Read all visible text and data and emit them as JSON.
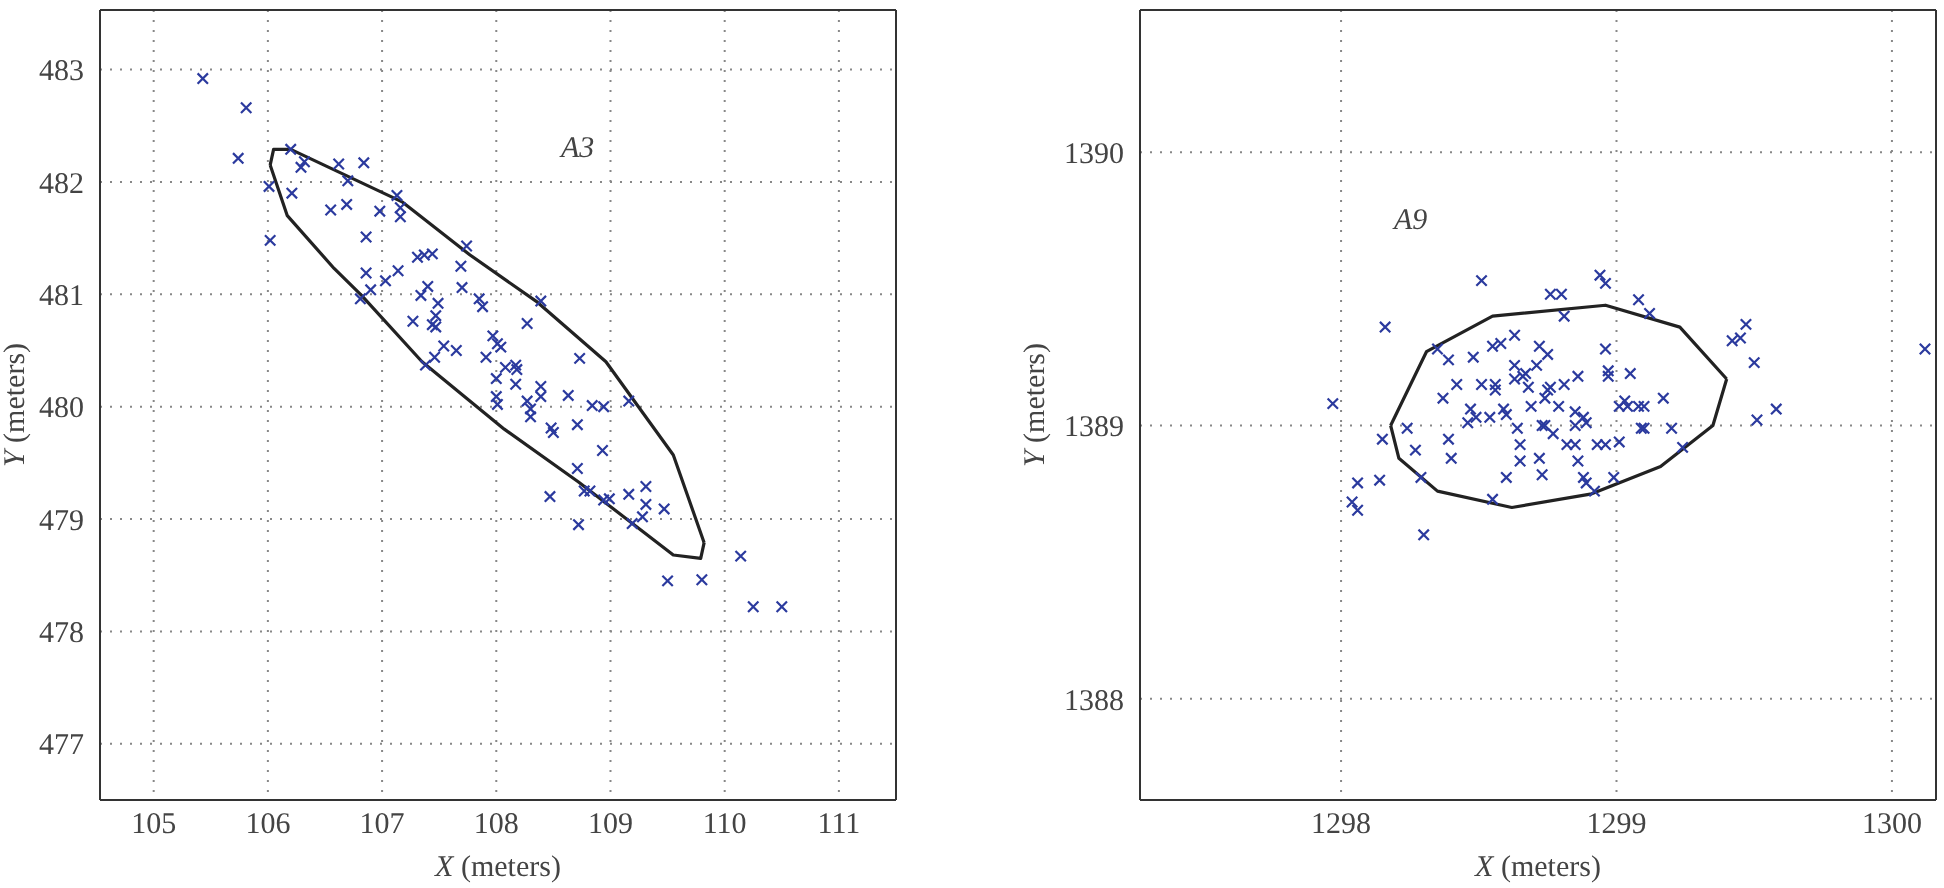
{
  "chart_data": [
    {
      "type": "scatter",
      "xlabel": "X (meters)",
      "ylabel": "Y (meters)",
      "xlim": [
        104.53,
        111.5
      ],
      "ylim": [
        476.5,
        483.53
      ],
      "xticks": [
        105,
        106,
        107,
        108,
        109,
        110,
        111
      ],
      "yticks": [
        477,
        478,
        479,
        480,
        481,
        482,
        483
      ],
      "grid": true,
      "marker": "cross",
      "annotations": [
        "A3"
      ],
      "series": [
        {
          "type": "line",
          "marker": "none",
          "color": "#222222",
          "x": [
            106.02,
            106.05,
            106.2,
            107.18,
            107.77,
            108.36,
            108.96,
            109.55,
            109.82
          ],
          "values": [
            482.15,
            482.29,
            482.29,
            481.82,
            481.35,
            480.93,
            480.4,
            479.57,
            478.79
          ]
        },
        {
          "type": "line",
          "marker": "none",
          "color": "#222222",
          "x": [
            106.02,
            106.17,
            106.58,
            106.82,
            107.35,
            108.07,
            108.72,
            109.55,
            109.79,
            109.82
          ],
          "values": [
            482.15,
            481.7,
            481.23,
            480.99,
            480.4,
            479.8,
            479.33,
            478.68,
            478.65,
            478.79
          ]
        },
        {
          "type": "scatter",
          "color": "#2b3a9e",
          "x": [
            105.43,
            105.81,
            105.74,
            106.01,
            106.02,
            106.2,
            106.21,
            106.29,
            106.32,
            106.62,
            106.7,
            106.84,
            106.55,
            106.69,
            106.98,
            107.13,
            107.16,
            107.16,
            106.86,
            107.14,
            106.86,
            107.03,
            106.9,
            106.81,
            107.31,
            107.37,
            107.44,
            107.74,
            107.69,
            107.7,
            107.4,
            107.34,
            107.49,
            107.27,
            107.47,
            107.44,
            107.47,
            107.38,
            107.46,
            107.54,
            107.65,
            107.85,
            107.88,
            107.91,
            107.97,
            108.01,
            108.04,
            108.08,
            108.0,
            108.17,
            108.18,
            108.17,
            108.0,
            108.01,
            108.27,
            108.39,
            108.39,
            108.39,
            108.27,
            108.3,
            108.3,
            108.63,
            108.84,
            108.94,
            109.16,
            108.73,
            108.48,
            108.5,
            108.71,
            108.93,
            108.71,
            108.77,
            108.82,
            108.47,
            108.94,
            108.99,
            109.16,
            109.31,
            109.31,
            109.28,
            109.19,
            109.47,
            108.72,
            109.5,
            109.8,
            110.14,
            110.25,
            110.5
          ],
          "values": [
            482.92,
            482.66,
            482.21,
            481.96,
            481.48,
            482.29,
            481.9,
            482.13,
            482.18,
            482.16,
            482.01,
            482.17,
            481.75,
            481.8,
            481.74,
            481.88,
            481.77,
            481.69,
            481.51,
            481.21,
            481.19,
            481.12,
            481.04,
            480.96,
            481.33,
            481.35,
            481.36,
            481.43,
            481.25,
            481.06,
            481.07,
            480.99,
            480.92,
            480.76,
            480.81,
            480.73,
            480.71,
            480.37,
            480.44,
            480.54,
            480.5,
            480.96,
            480.89,
            480.44,
            480.63,
            480.56,
            480.53,
            480.35,
            480.25,
            480.37,
            480.33,
            480.2,
            480.09,
            480.02,
            480.74,
            480.94,
            480.18,
            480.09,
            480.05,
            479.98,
            479.91,
            480.1,
            480.01,
            480.0,
            480.05,
            480.43,
            479.81,
            479.77,
            479.84,
            479.61,
            479.45,
            479.25,
            479.25,
            479.2,
            479.17,
            479.18,
            479.22,
            479.29,
            479.13,
            479.02,
            478.96,
            479.09,
            478.95,
            478.45,
            478.46,
            478.67,
            478.22,
            478.22
          ]
        }
      ]
    },
    {
      "type": "scatter",
      "xlabel": "X (meters)",
      "ylabel": "Y (meters)",
      "xlim": [
        1297.27,
        1300.16
      ],
      "ylim": [
        1387.63,
        1390.52
      ],
      "xticks": [
        1298,
        1299,
        1300
      ],
      "yticks": [
        1388,
        1389,
        1390
      ],
      "grid": true,
      "marker": "cross",
      "annotations": [
        "A9"
      ],
      "series": [
        {
          "type": "line",
          "marker": "none",
          "color": "#222222",
          "x": [
            1298.18,
            1298.31,
            1298.55,
            1298.96,
            1299.23,
            1299.4
          ],
          "values": [
            1389.0,
            1389.27,
            1389.4,
            1389.44,
            1389.36,
            1389.17
          ]
        },
        {
          "type": "line",
          "marker": "none",
          "color": "#222222",
          "x": [
            1298.18,
            1298.21,
            1298.35,
            1298.62,
            1298.91,
            1299.16,
            1299.35,
            1299.4
          ],
          "values": [
            1389.0,
            1388.88,
            1388.76,
            1388.7,
            1388.75,
            1388.85,
            1389.0,
            1389.17
          ]
        },
        {
          "type": "scatter",
          "color": "#2b3a9e",
          "x": [
            1297.97,
            1298.16,
            1298.15,
            1298.06,
            1298.04,
            1298.06,
            1298.14,
            1298.24,
            1298.27,
            1298.29,
            1298.3,
            1298.35,
            1298.39,
            1298.37,
            1298.42,
            1298.39,
            1298.4,
            1298.51,
            1298.48,
            1298.47,
            1298.49,
            1298.46,
            1298.54,
            1298.51,
            1298.56,
            1298.56,
            1298.55,
            1298.58,
            1298.63,
            1298.63,
            1298.63,
            1298.66,
            1298.67,
            1298.68,
            1298.59,
            1298.6,
            1298.64,
            1298.65,
            1298.65,
            1298.6,
            1298.55,
            1298.69,
            1298.72,
            1298.71,
            1298.75,
            1298.75,
            1298.76,
            1298.74,
            1298.73,
            1298.74,
            1298.77,
            1298.72,
            1298.73,
            1298.76,
            1298.8,
            1298.81,
            1298.81,
            1298.79,
            1298.82,
            1298.85,
            1298.85,
            1298.85,
            1298.86,
            1298.86,
            1298.88,
            1298.89,
            1298.88,
            1298.89,
            1298.92,
            1298.93,
            1298.96,
            1298.94,
            1298.96,
            1298.96,
            1298.97,
            1298.97,
            1298.99,
            1299.01,
            1299.01,
            1299.03,
            1299.04,
            1299.05,
            1299.08,
            1299.1,
            1299.09,
            1299.1,
            1299.08,
            1299.12,
            1299.17,
            1299.2,
            1299.24,
            1299.42,
            1299.45,
            1299.47,
            1299.5,
            1299.51,
            1299.58,
            1300.12
          ],
          "values": [
            1389.08,
            1389.36,
            1388.95,
            1388.79,
            1388.72,
            1388.69,
            1388.8,
            1388.99,
            1388.91,
            1388.81,
            1388.6,
            1389.28,
            1389.24,
            1389.1,
            1389.15,
            1388.95,
            1388.88,
            1389.53,
            1389.25,
            1389.06,
            1389.03,
            1389.01,
            1389.03,
            1389.15,
            1389.15,
            1389.13,
            1389.29,
            1389.3,
            1389.33,
            1389.22,
            1389.17,
            1389.18,
            1389.19,
            1389.14,
            1389.06,
            1389.04,
            1388.99,
            1388.93,
            1388.87,
            1388.81,
            1388.73,
            1389.07,
            1389.29,
            1389.22,
            1389.26,
            1389.13,
            1389.14,
            1389.1,
            1389.0,
            1389.0,
            1388.97,
            1388.88,
            1388.82,
            1389.48,
            1389.48,
            1389.4,
            1389.15,
            1389.07,
            1388.93,
            1389.05,
            1389.0,
            1388.93,
            1388.87,
            1389.18,
            1389.03,
            1389.01,
            1388.81,
            1388.79,
            1388.76,
            1388.93,
            1388.93,
            1389.55,
            1389.52,
            1389.28,
            1389.2,
            1389.18,
            1388.81,
            1388.94,
            1389.07,
            1389.09,
            1389.07,
            1389.19,
            1389.07,
            1389.07,
            1388.99,
            1388.99,
            1389.46,
            1389.41,
            1389.1,
            1388.99,
            1388.92,
            1389.31,
            1389.32,
            1389.37,
            1389.23,
            1389.02,
            1389.06,
            1389.28
          ]
        }
      ]
    }
  ]
}
